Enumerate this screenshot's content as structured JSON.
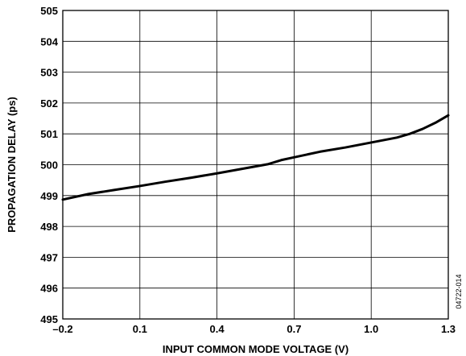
{
  "chart_data": {
    "type": "line",
    "xlabel": "INPUT COMMON MODE VOLTAGE (V)",
    "ylabel": "PROPAGATION DELAY (ps)",
    "xlim": [
      -0.2,
      1.3
    ],
    "ylim": [
      495,
      505
    ],
    "x_ticks": [
      -0.2,
      0.1,
      0.4,
      0.7,
      1.0,
      1.3
    ],
    "x_tick_labels": [
      "–0.2",
      "0.1",
      "0.4",
      "0.7",
      "1.0",
      "1.3"
    ],
    "y_ticks": [
      495,
      496,
      497,
      498,
      499,
      500,
      501,
      502,
      503,
      504,
      505
    ],
    "y_tick_labels": [
      "495",
      "496",
      "497",
      "498",
      "499",
      "500",
      "501",
      "502",
      "503",
      "504",
      "505"
    ],
    "grid": true,
    "series": [
      {
        "x": [
          -0.2,
          -0.1,
          0.0,
          0.1,
          0.2,
          0.3,
          0.4,
          0.5,
          0.6,
          0.65,
          0.7,
          0.8,
          0.9,
          1.0,
          1.1,
          1.15,
          1.2,
          1.25,
          1.3
        ],
        "y": [
          498.87,
          499.05,
          499.18,
          499.31,
          499.45,
          499.58,
          499.72,
          499.87,
          500.02,
          500.15,
          500.24,
          500.42,
          500.56,
          500.72,
          500.88,
          501.0,
          501.16,
          501.36,
          501.6
        ]
      }
    ],
    "figure_id": "04722-014"
  }
}
